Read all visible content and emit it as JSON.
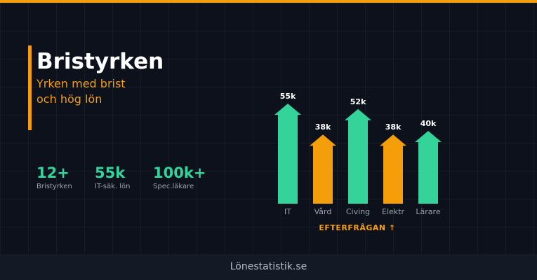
{
  "header": {
    "title": "Bristyrken",
    "subtitle_lines": [
      "Yrken med brist",
      "och hög lön"
    ]
  },
  "stats": [
    {
      "value": "12+",
      "label": "Bristyrken"
    },
    {
      "value": "55k",
      "label": "IT-säk. lön"
    },
    {
      "value": "100k+",
      "label": "Spec.läkare"
    }
  ],
  "chart_data": {
    "type": "bar",
    "categories": [
      "IT",
      "Vård",
      "Civing",
      "Elektr",
      "Lärare"
    ],
    "values": [
      55,
      38,
      52,
      38,
      40
    ],
    "value_labels": [
      "55k",
      "38k",
      "52k",
      "38k",
      "40k"
    ],
    "bar_colors": [
      "#34d399",
      "#f59e0b",
      "#34d399",
      "#f59e0b",
      "#34d399"
    ],
    "xlabel": "EFTERFRÅGAN ↑",
    "ylim": [
      0,
      60
    ],
    "grid": false,
    "legend": "none"
  },
  "footer": {
    "text": "Lönestatistik.se"
  },
  "colors": {
    "accent": "#f59e0b",
    "green": "#34d399",
    "background": "#0d111b"
  }
}
